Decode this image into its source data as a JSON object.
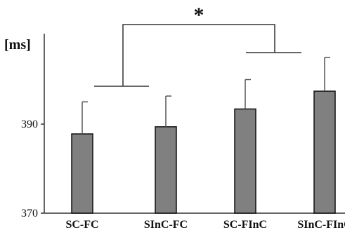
{
  "chart_data": {
    "type": "bar",
    "categories": [
      "SC-FC",
      "SInC-FC",
      "SC-FInC",
      "SInC-FInC"
    ],
    "values": [
      387.8,
      389.4,
      393.4,
      397.4
    ],
    "error_upper": [
      395.0,
      396.3,
      400.0,
      405.0
    ],
    "ylabel": "[ms]",
    "ylim": [
      370,
      410
    ],
    "yticks": [
      370,
      390
    ],
    "bar_color": "#808080",
    "grid": false,
    "significance": {
      "label": "*",
      "comparison": [
        [
          "SC-FC",
          "SInC-FC"
        ],
        [
          "SC-FInC",
          "SInC-FInC"
        ]
      ]
    }
  }
}
